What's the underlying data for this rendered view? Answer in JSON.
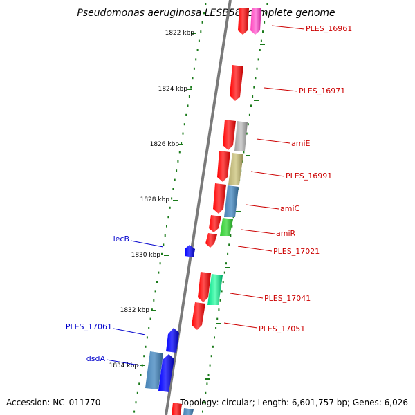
{
  "title": "Pseudomonas aeruginosa LESB58, complete genome",
  "accession": "Accession: NC_011770",
  "topology": "Topology: circular; Length: 6,601,757 bp; Genes: 6,026",
  "colors": {
    "backbone": "#808080",
    "ticks": "#1a7a1a",
    "red_gene": "#ff0000",
    "blue_gene": "#0000ff",
    "red_label": "#cc0000",
    "blue_label": "#0000cc"
  },
  "kbp_marks": [
    "1822 kbp",
    "1824 kbp",
    "1826 kbp",
    "1828 kbp",
    "1830 kbp",
    "1832 kbp",
    "1834 kbp"
  ],
  "right_labels": [
    "PLES_16961",
    "PLES_16971",
    "amiE",
    "PLES_16991",
    "amiC",
    "amiR",
    "PLES_17021",
    "PLES_17041",
    "PLES_17051"
  ],
  "left_labels": [
    "lecB",
    "PLES_17061",
    "dsdA"
  ]
}
